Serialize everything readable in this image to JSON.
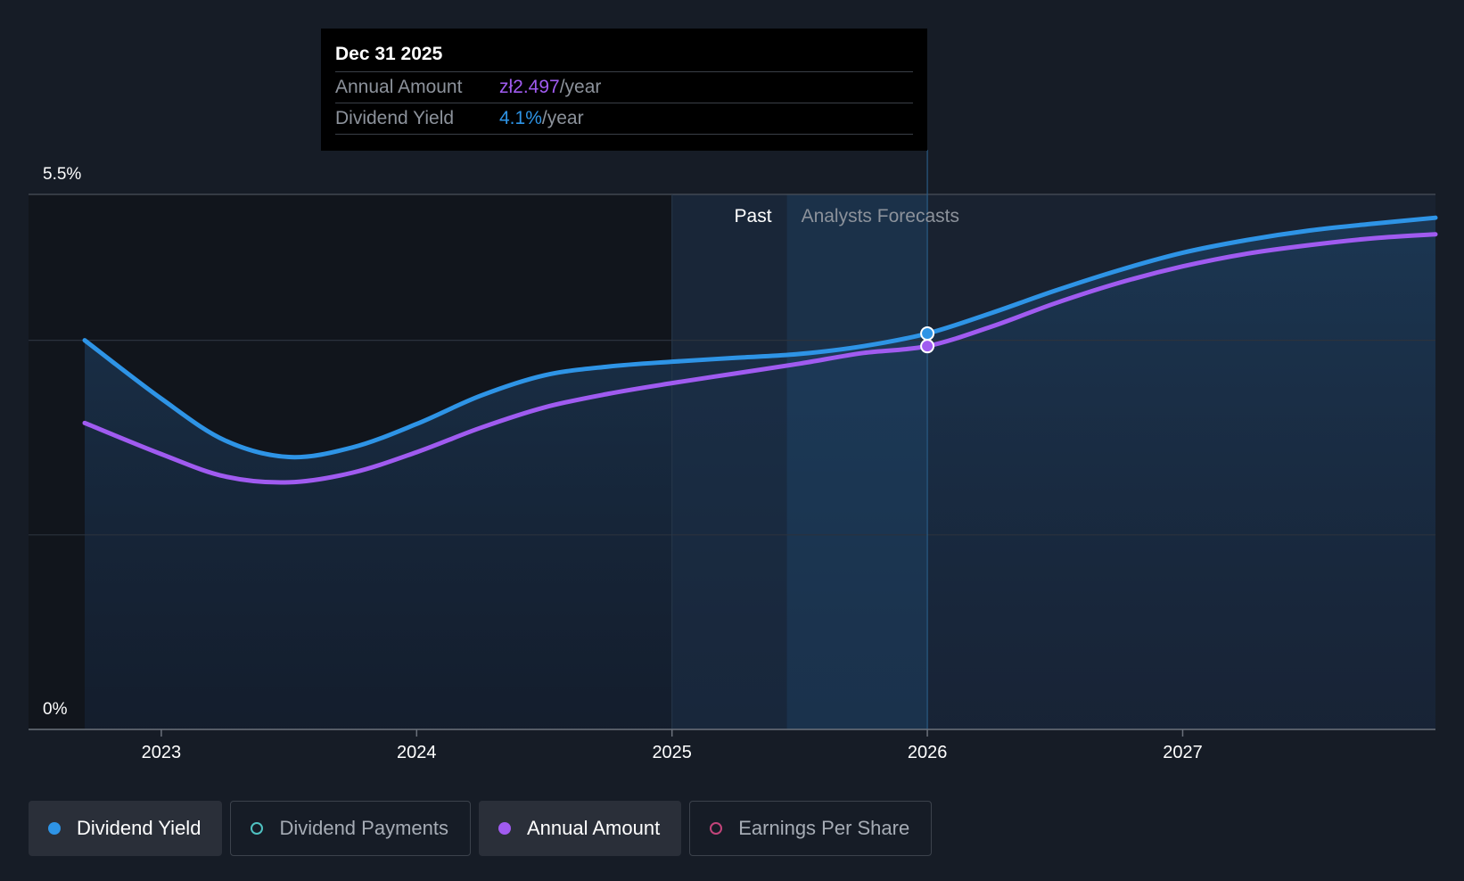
{
  "tooltip": {
    "date": "Dec 31 2025",
    "rows": [
      {
        "label": "Annual Amount",
        "value": "zł2.497",
        "unit": "/year"
      },
      {
        "label": "Dividend Yield",
        "value": "4.1%",
        "unit": "/year"
      }
    ]
  },
  "legend": [
    {
      "label": "Dividend Yield",
      "color": "#2e94e6",
      "active": true
    },
    {
      "label": "Dividend Payments",
      "color": "#4fc1c1",
      "active": false
    },
    {
      "label": "Annual Amount",
      "color": "#a05bf0",
      "active": true
    },
    {
      "label": "Earnings Per Share",
      "color": "#c2447a",
      "active": false
    }
  ],
  "chart_data": {
    "type": "line",
    "ylim": [
      0,
      5.5
    ],
    "y_tick_labels": [
      "5.5%",
      "0%"
    ],
    "x_ticks": [
      2023,
      2024,
      2025,
      2026,
      2027
    ],
    "xlim": [
      2022.48,
      2027.99
    ],
    "past_label": "Past",
    "forecast_label": "Analysts Forecasts",
    "past_start": 2025.0,
    "forecast_start": 2025.45,
    "cursor_x": 2026.0,
    "grid": true,
    "series": [
      {
        "name": "Dividend Yield",
        "color": "#2e94e6",
        "x": [
          2022.7,
          2023.0,
          2023.25,
          2023.5,
          2023.75,
          2024.0,
          2024.25,
          2024.5,
          2024.75,
          2025.0,
          2025.25,
          2025.5,
          2025.75,
          2026.0,
          2026.25,
          2026.5,
          2026.75,
          2027.0,
          2027.25,
          2027.5,
          2027.75,
          2027.99
        ],
        "y": [
          4.0,
          3.4,
          2.97,
          2.8,
          2.9,
          3.14,
          3.43,
          3.64,
          3.73,
          3.78,
          3.82,
          3.86,
          3.94,
          4.07,
          4.28,
          4.51,
          4.72,
          4.9,
          5.03,
          5.13,
          5.2,
          5.26
        ]
      },
      {
        "name": "Annual Amount",
        "color": "#a05bf0",
        "x": [
          2022.7,
          2023.0,
          2023.25,
          2023.5,
          2023.75,
          2024.0,
          2024.25,
          2024.5,
          2024.75,
          2025.0,
          2025.25,
          2025.5,
          2025.75,
          2026.0,
          2026.25,
          2026.5,
          2026.75,
          2027.0,
          2027.25,
          2027.5,
          2027.75,
          2027.99
        ],
        "y": [
          3.15,
          2.83,
          2.6,
          2.54,
          2.64,
          2.85,
          3.1,
          3.31,
          3.45,
          3.56,
          3.66,
          3.76,
          3.87,
          3.94,
          4.14,
          4.38,
          4.59,
          4.76,
          4.89,
          4.98,
          5.05,
          5.09
        ]
      }
    ],
    "markers": [
      {
        "series": "Dividend Yield",
        "x": 2026.0,
        "y": 4.07
      },
      {
        "series": "Annual Amount",
        "x": 2026.0,
        "y": 3.94
      }
    ]
  }
}
